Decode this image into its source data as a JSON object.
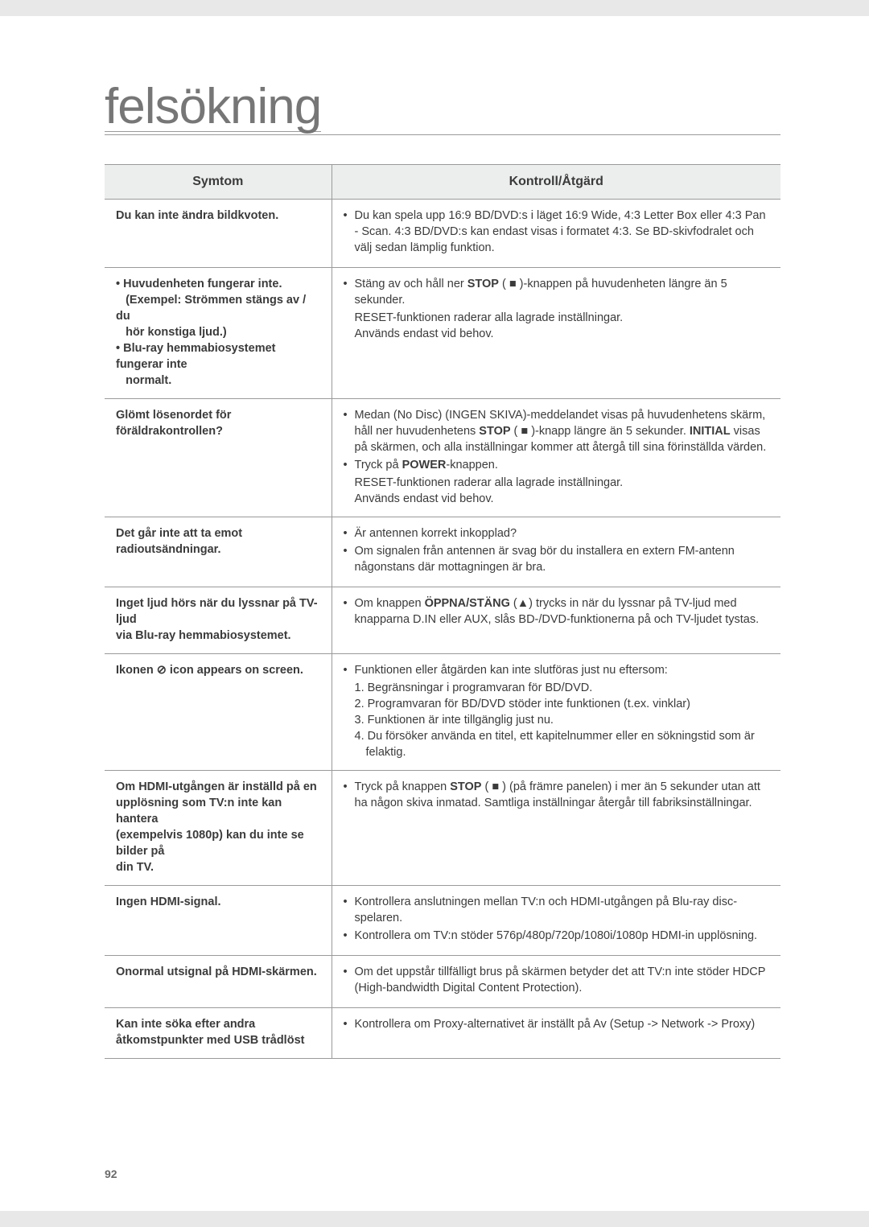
{
  "title": "felsökning",
  "pagenum": "92",
  "headers": {
    "symptom": "Symtom",
    "action": "Kontroll/Åtgärd"
  },
  "rows": [
    {
      "symptom": {
        "lines": [
          "Du kan inte ändra bildkvoten."
        ]
      },
      "action": {
        "items": [
          {
            "type": "bullet",
            "text": "Du kan spela upp 16:9 BD/DVD:s i läget 16:9 Wide, 4:3 Letter Box eller 4:3 Pan - Scan. 4:3 BD/DVD:s kan endast visas i formatet 4:3. Se BD-skivfodralet och välj sedan lämplig funktion."
          }
        ]
      }
    },
    {
      "symptom": {
        "lines": [
          "• Huvudenheten fungerar inte.",
          "   (Exempel: Strömmen stängs av / du",
          "   hör konstiga ljud.)",
          "• Blu-ray hemmabiosystemet fungerar inte",
          "   normalt."
        ],
        "raw": true
      },
      "action": {
        "items": [
          {
            "type": "bullet",
            "html": "Stäng av och håll ner <b>STOP</b> ( ■ )-knappen på huvudenheten längre än 5 sekunder."
          },
          {
            "type": "plain",
            "text": "RESET-funktionen raderar alla lagrade inställningar."
          },
          {
            "type": "plain",
            "text": "Används endast vid behov."
          }
        ]
      }
    },
    {
      "symptom": {
        "lines": [
          "Glömt lösenordet för föräldrakontrollen?"
        ]
      },
      "action": {
        "items": [
          {
            "type": "bullet",
            "html": "Medan (No Disc) (INGEN SKIVA)-meddelandet visas på huvudenhetens skärm, håll ner huvudenhetens <b>STOP</b> ( ■ )-knapp längre än 5 sekunder. <b>INITIAL</b> visas på skärmen, och alla inställningar kommer att återgå till sina förinställda värden."
          },
          {
            "type": "bullet",
            "html": "Tryck på <b>POWER</b>-knappen."
          },
          {
            "type": "plain",
            "text": "RESET-funktionen raderar alla lagrade inställningar."
          },
          {
            "type": "plain",
            "text": "Används endast vid behov."
          }
        ]
      }
    },
    {
      "symptom": {
        "lines": [
          "Det går inte att ta emot",
          "radioutsändningar."
        ]
      },
      "action": {
        "items": [
          {
            "type": "bullet",
            "text": "Är antennen korrekt inkopplad?"
          },
          {
            "type": "bullet",
            "text": "Om signalen från antennen är svag bör du installera en extern FM-antenn någonstans där mottagningen är bra."
          }
        ]
      }
    },
    {
      "symptom": {
        "lines": [
          "Inget ljud hörs när du lyssnar på TV-ljud",
          "via Blu-ray hemmabiosystemet."
        ]
      },
      "action": {
        "items": [
          {
            "type": "bullet",
            "html": "Om knappen <b>ÖPPNA/STÄNG</b> (▲) trycks in när du lyssnar på TV-ljud med knapparna D.IN eller AUX, slås BD-/DVD-funktionerna på och TV-ljudet tystas."
          }
        ]
      }
    },
    {
      "symptom": {
        "lines": [
          "Ikonen ⊘ icon appears on screen."
        ]
      },
      "action": {
        "items": [
          {
            "type": "bullet",
            "text": "Funktionen eller åtgärden kan inte slutföras just nu eftersom:"
          },
          {
            "type": "sub",
            "text": "1. Begränsningar i programvaran för BD/DVD."
          },
          {
            "type": "sub",
            "text": "2. Programvaran för BD/DVD stöder inte funktionen (t.ex. vinklar)"
          },
          {
            "type": "sub",
            "text": "3. Funktionen är inte tillgänglig just nu."
          },
          {
            "type": "sub",
            "text": "4. Du försöker använda en titel, ett kapitelnummer eller en sökningstid som är"
          },
          {
            "type": "sub2",
            "text": "felaktig."
          }
        ]
      }
    },
    {
      "symptom": {
        "lines": [
          "Om HDMI-utgången är inställd på en",
          "upplösning som TV:n inte kan hantera",
          "(exempelvis 1080p) kan du inte se bilder på",
          "din TV."
        ]
      },
      "action": {
        "items": [
          {
            "type": "bullet",
            "html": "Tryck på knappen <b>STOP</b> ( ■ ) (på främre panelen) i mer än 5 sekunder utan att ha någon skiva inmatad. Samtliga inställningar återgår till fabriksinställningar."
          }
        ]
      }
    },
    {
      "symptom": {
        "lines": [
          "Ingen HDMI-signal."
        ]
      },
      "action": {
        "items": [
          {
            "type": "bullet",
            "text": "Kontrollera anslutningen mellan TV:n och HDMI-utgången på Blu-ray disc-spelaren."
          },
          {
            "type": "bullet",
            "text": "Kontrollera om TV:n stöder 576p/480p/720p/1080i/1080p HDMI-in upplösning."
          }
        ]
      }
    },
    {
      "symptom": {
        "lines": [
          "Onormal utsignal på HDMI-skärmen."
        ]
      },
      "action": {
        "items": [
          {
            "type": "bullet",
            "text": "Om det uppstår tillfälligt brus på skärmen betyder det att TV:n inte stöder HDCP (High-bandwidth Digital Content Protection)."
          }
        ]
      }
    },
    {
      "symptom": {
        "lines": [
          "Kan inte söka efter andra",
          "åtkomstpunkter med USB trådlöst"
        ]
      },
      "action": {
        "items": [
          {
            "type": "bullet",
            "text": "Kontrollera om Proxy-alternativet är inställt på Av (Setup -> Network -> Proxy)"
          }
        ]
      }
    }
  ]
}
